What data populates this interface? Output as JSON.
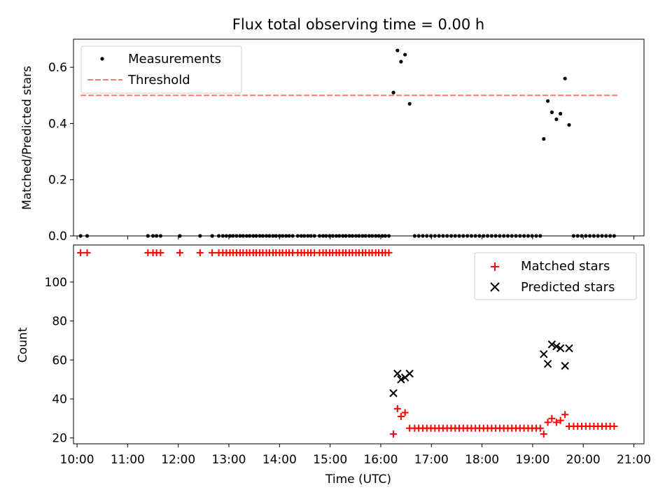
{
  "chart_data": [
    {
      "type": "scatter",
      "title": "Flux total observing time = 0.00 h",
      "xlabel": "",
      "ylabel": "Matched/Predicted stars",
      "xlim": [
        9.93,
        21.2
      ],
      "ylim": [
        0,
        0.7
      ],
      "yticks": [
        0.0,
        0.2,
        0.4,
        0.6
      ],
      "ytick_labels": [
        "0.0",
        "0.2",
        "0.4",
        "0.6"
      ],
      "grid": false,
      "legend": "top-left",
      "series": [
        {
          "name": "Measurements",
          "color": "#000000",
          "marker": "dot",
          "points": [
            [
              10.07,
              0
            ],
            [
              10.2,
              0
            ],
            [
              11.4,
              0
            ],
            [
              11.5,
              0
            ],
            [
              11.57,
              0
            ],
            [
              11.65,
              0
            ],
            [
              12.03,
              0
            ],
            [
              12.43,
              0
            ],
            [
              12.67,
              0
            ],
            [
              12.8,
              0
            ],
            [
              12.88,
              0
            ],
            [
              12.95,
              0
            ],
            [
              13.02,
              0
            ],
            [
              13.08,
              0
            ],
            [
              13.15,
              0
            ],
            [
              13.22,
              0
            ],
            [
              13.28,
              0
            ],
            [
              13.35,
              0
            ],
            [
              13.41,
              0
            ],
            [
              13.48,
              0
            ],
            [
              13.54,
              0
            ],
            [
              13.61,
              0
            ],
            [
              13.67,
              0
            ],
            [
              13.74,
              0
            ],
            [
              13.8,
              0
            ],
            [
              13.87,
              0
            ],
            [
              13.93,
              0
            ],
            [
              14.0,
              0
            ],
            [
              14.06,
              0
            ],
            [
              14.13,
              0
            ],
            [
              14.19,
              0
            ],
            [
              14.26,
              0
            ],
            [
              14.36,
              0
            ],
            [
              14.43,
              0
            ],
            [
              14.49,
              0
            ],
            [
              14.56,
              0
            ],
            [
              14.62,
              0
            ],
            [
              14.69,
              0
            ],
            [
              14.79,
              0
            ],
            [
              14.86,
              0
            ],
            [
              14.92,
              0
            ],
            [
              14.99,
              0
            ],
            [
              15.05,
              0
            ],
            [
              15.12,
              0
            ],
            [
              15.18,
              0
            ],
            [
              15.25,
              0
            ],
            [
              15.31,
              0
            ],
            [
              15.38,
              0
            ],
            [
              15.44,
              0
            ],
            [
              15.51,
              0
            ],
            [
              15.57,
              0
            ],
            [
              15.64,
              0
            ],
            [
              15.7,
              0
            ],
            [
              15.77,
              0
            ],
            [
              15.83,
              0
            ],
            [
              15.9,
              0
            ],
            [
              15.96,
              0
            ],
            [
              16.03,
              0
            ],
            [
              16.09,
              0
            ],
            [
              16.16,
              0
            ],
            [
              16.25,
              0.51
            ],
            [
              16.33,
              0.66
            ],
            [
              16.4,
              0.62
            ],
            [
              16.48,
              0.645
            ],
            [
              16.57,
              0.47
            ],
            [
              16.67,
              0
            ],
            [
              16.75,
              0
            ],
            [
              16.83,
              0
            ],
            [
              16.91,
              0
            ],
            [
              16.99,
              0
            ],
            [
              17.07,
              0
            ],
            [
              17.15,
              0
            ],
            [
              17.23,
              0
            ],
            [
              17.31,
              0
            ],
            [
              17.39,
              0
            ],
            [
              17.47,
              0
            ],
            [
              17.55,
              0
            ],
            [
              17.63,
              0
            ],
            [
              17.71,
              0
            ],
            [
              17.79,
              0
            ],
            [
              17.87,
              0
            ],
            [
              17.95,
              0
            ],
            [
              18.03,
              0
            ],
            [
              18.11,
              0
            ],
            [
              18.19,
              0
            ],
            [
              18.27,
              0
            ],
            [
              18.35,
              0
            ],
            [
              18.43,
              0
            ],
            [
              18.51,
              0
            ],
            [
              18.59,
              0
            ],
            [
              18.67,
              0
            ],
            [
              18.75,
              0
            ],
            [
              18.83,
              0
            ],
            [
              18.91,
              0
            ],
            [
              18.99,
              0
            ],
            [
              19.07,
              0
            ],
            [
              19.15,
              0
            ],
            [
              19.22,
              0.345
            ],
            [
              19.3,
              0.48
            ],
            [
              19.38,
              0.44
            ],
            [
              19.47,
              0.415
            ],
            [
              19.55,
              0.435
            ],
            [
              19.64,
              0.56
            ],
            [
              19.72,
              0.395
            ],
            [
              19.81,
              0
            ],
            [
              19.89,
              0
            ],
            [
              19.97,
              0
            ],
            [
              20.05,
              0
            ],
            [
              20.13,
              0
            ],
            [
              20.21,
              0
            ],
            [
              20.29,
              0
            ],
            [
              20.37,
              0
            ],
            [
              20.45,
              0
            ],
            [
              20.53,
              0
            ],
            [
              20.61,
              0
            ]
          ]
        },
        {
          "name": "Threshold",
          "color": "#ff7777",
          "style": "dashed",
          "points": [
            [
              10.07,
              0.5
            ],
            [
              20.7,
              0.5
            ]
          ]
        }
      ]
    },
    {
      "type": "scatter",
      "title": "",
      "xlabel": "Time (UTC)",
      "ylabel": "Count",
      "xlim": [
        9.93,
        21.2
      ],
      "ylim": [
        17,
        119
      ],
      "yticks": [
        20,
        40,
        60,
        80,
        100
      ],
      "ytick_labels": [
        "20",
        "40",
        "60",
        "80",
        "100"
      ],
      "xticks": [
        10,
        11,
        12,
        13,
        14,
        15,
        16,
        17,
        18,
        19,
        20,
        21
      ],
      "xtick_labels": [
        "10:00",
        "11:00",
        "12:00",
        "13:00",
        "14:00",
        "15:00",
        "16:00",
        "17:00",
        "18:00",
        "19:00",
        "20:00",
        "21:00"
      ],
      "grid": false,
      "legend": "top-right",
      "series": [
        {
          "name": "Matched stars",
          "color": "#ff0000",
          "marker": "plus",
          "points": [
            [
              10.07,
              115
            ],
            [
              10.2,
              115
            ],
            [
              11.4,
              115
            ],
            [
              11.5,
              115
            ],
            [
              11.57,
              115
            ],
            [
              11.65,
              115
            ],
            [
              12.03,
              115
            ],
            [
              12.43,
              115
            ],
            [
              12.67,
              115
            ],
            [
              12.8,
              115
            ],
            [
              12.88,
              115
            ],
            [
              12.95,
              115
            ],
            [
              13.02,
              115
            ],
            [
              13.08,
              115
            ],
            [
              13.15,
              115
            ],
            [
              13.22,
              115
            ],
            [
              13.28,
              115
            ],
            [
              13.35,
              115
            ],
            [
              13.41,
              115
            ],
            [
              13.48,
              115
            ],
            [
              13.54,
              115
            ],
            [
              13.61,
              115
            ],
            [
              13.67,
              115
            ],
            [
              13.74,
              115
            ],
            [
              13.8,
              115
            ],
            [
              13.87,
              115
            ],
            [
              13.93,
              115
            ],
            [
              14.0,
              115
            ],
            [
              14.06,
              115
            ],
            [
              14.13,
              115
            ],
            [
              14.19,
              115
            ],
            [
              14.26,
              115
            ],
            [
              14.36,
              115
            ],
            [
              14.43,
              115
            ],
            [
              14.49,
              115
            ],
            [
              14.56,
              115
            ],
            [
              14.62,
              115
            ],
            [
              14.69,
              115
            ],
            [
              14.79,
              115
            ],
            [
              14.86,
              115
            ],
            [
              14.92,
              115
            ],
            [
              14.99,
              115
            ],
            [
              15.05,
              115
            ],
            [
              15.12,
              115
            ],
            [
              15.18,
              115
            ],
            [
              15.25,
              115
            ],
            [
              15.31,
              115
            ],
            [
              15.38,
              115
            ],
            [
              15.44,
              115
            ],
            [
              15.51,
              115
            ],
            [
              15.57,
              115
            ],
            [
              15.64,
              115
            ],
            [
              15.7,
              115
            ],
            [
              15.77,
              115
            ],
            [
              15.83,
              115
            ],
            [
              15.9,
              115
            ],
            [
              15.96,
              115
            ],
            [
              16.03,
              115
            ],
            [
              16.09,
              115
            ],
            [
              16.16,
              115
            ],
            [
              16.25,
              22
            ],
            [
              16.33,
              35
            ],
            [
              16.4,
              31
            ],
            [
              16.48,
              33
            ],
            [
              16.57,
              25
            ],
            [
              16.67,
              25
            ],
            [
              16.75,
              25
            ],
            [
              16.83,
              25
            ],
            [
              16.91,
              25
            ],
            [
              16.99,
              25
            ],
            [
              17.07,
              25
            ],
            [
              17.15,
              25
            ],
            [
              17.23,
              25
            ],
            [
              17.31,
              25
            ],
            [
              17.39,
              25
            ],
            [
              17.47,
              25
            ],
            [
              17.55,
              25
            ],
            [
              17.63,
              25
            ],
            [
              17.71,
              25
            ],
            [
              17.79,
              25
            ],
            [
              17.87,
              25
            ],
            [
              17.95,
              25
            ],
            [
              18.03,
              25
            ],
            [
              18.11,
              25
            ],
            [
              18.19,
              25
            ],
            [
              18.27,
              25
            ],
            [
              18.35,
              25
            ],
            [
              18.43,
              25
            ],
            [
              18.51,
              25
            ],
            [
              18.59,
              25
            ],
            [
              18.67,
              25
            ],
            [
              18.75,
              25
            ],
            [
              18.83,
              25
            ],
            [
              18.91,
              25
            ],
            [
              18.99,
              25
            ],
            [
              19.07,
              25
            ],
            [
              19.15,
              25
            ],
            [
              19.22,
              22
            ],
            [
              19.3,
              28
            ],
            [
              19.38,
              30
            ],
            [
              19.47,
              28
            ],
            [
              19.55,
              29
            ],
            [
              19.64,
              32
            ],
            [
              19.72,
              26
            ],
            [
              19.81,
              26
            ],
            [
              19.89,
              26
            ],
            [
              19.97,
              26
            ],
            [
              20.05,
              26
            ],
            [
              20.13,
              26
            ],
            [
              20.21,
              26
            ],
            [
              20.29,
              26
            ],
            [
              20.37,
              26
            ],
            [
              20.45,
              26
            ],
            [
              20.53,
              26
            ],
            [
              20.61,
              26
            ]
          ]
        },
        {
          "name": "Predicted stars",
          "color": "#000000",
          "marker": "x",
          "points": [
            [
              16.25,
              43
            ],
            [
              16.33,
              53
            ],
            [
              16.4,
              50
            ],
            [
              16.48,
              51
            ],
            [
              16.57,
              53
            ],
            [
              19.22,
              63
            ],
            [
              19.3,
              58
            ],
            [
              19.38,
              68
            ],
            [
              19.47,
              67
            ],
            [
              19.55,
              66
            ],
            [
              19.64,
              57
            ],
            [
              19.72,
              66
            ]
          ]
        }
      ]
    }
  ]
}
